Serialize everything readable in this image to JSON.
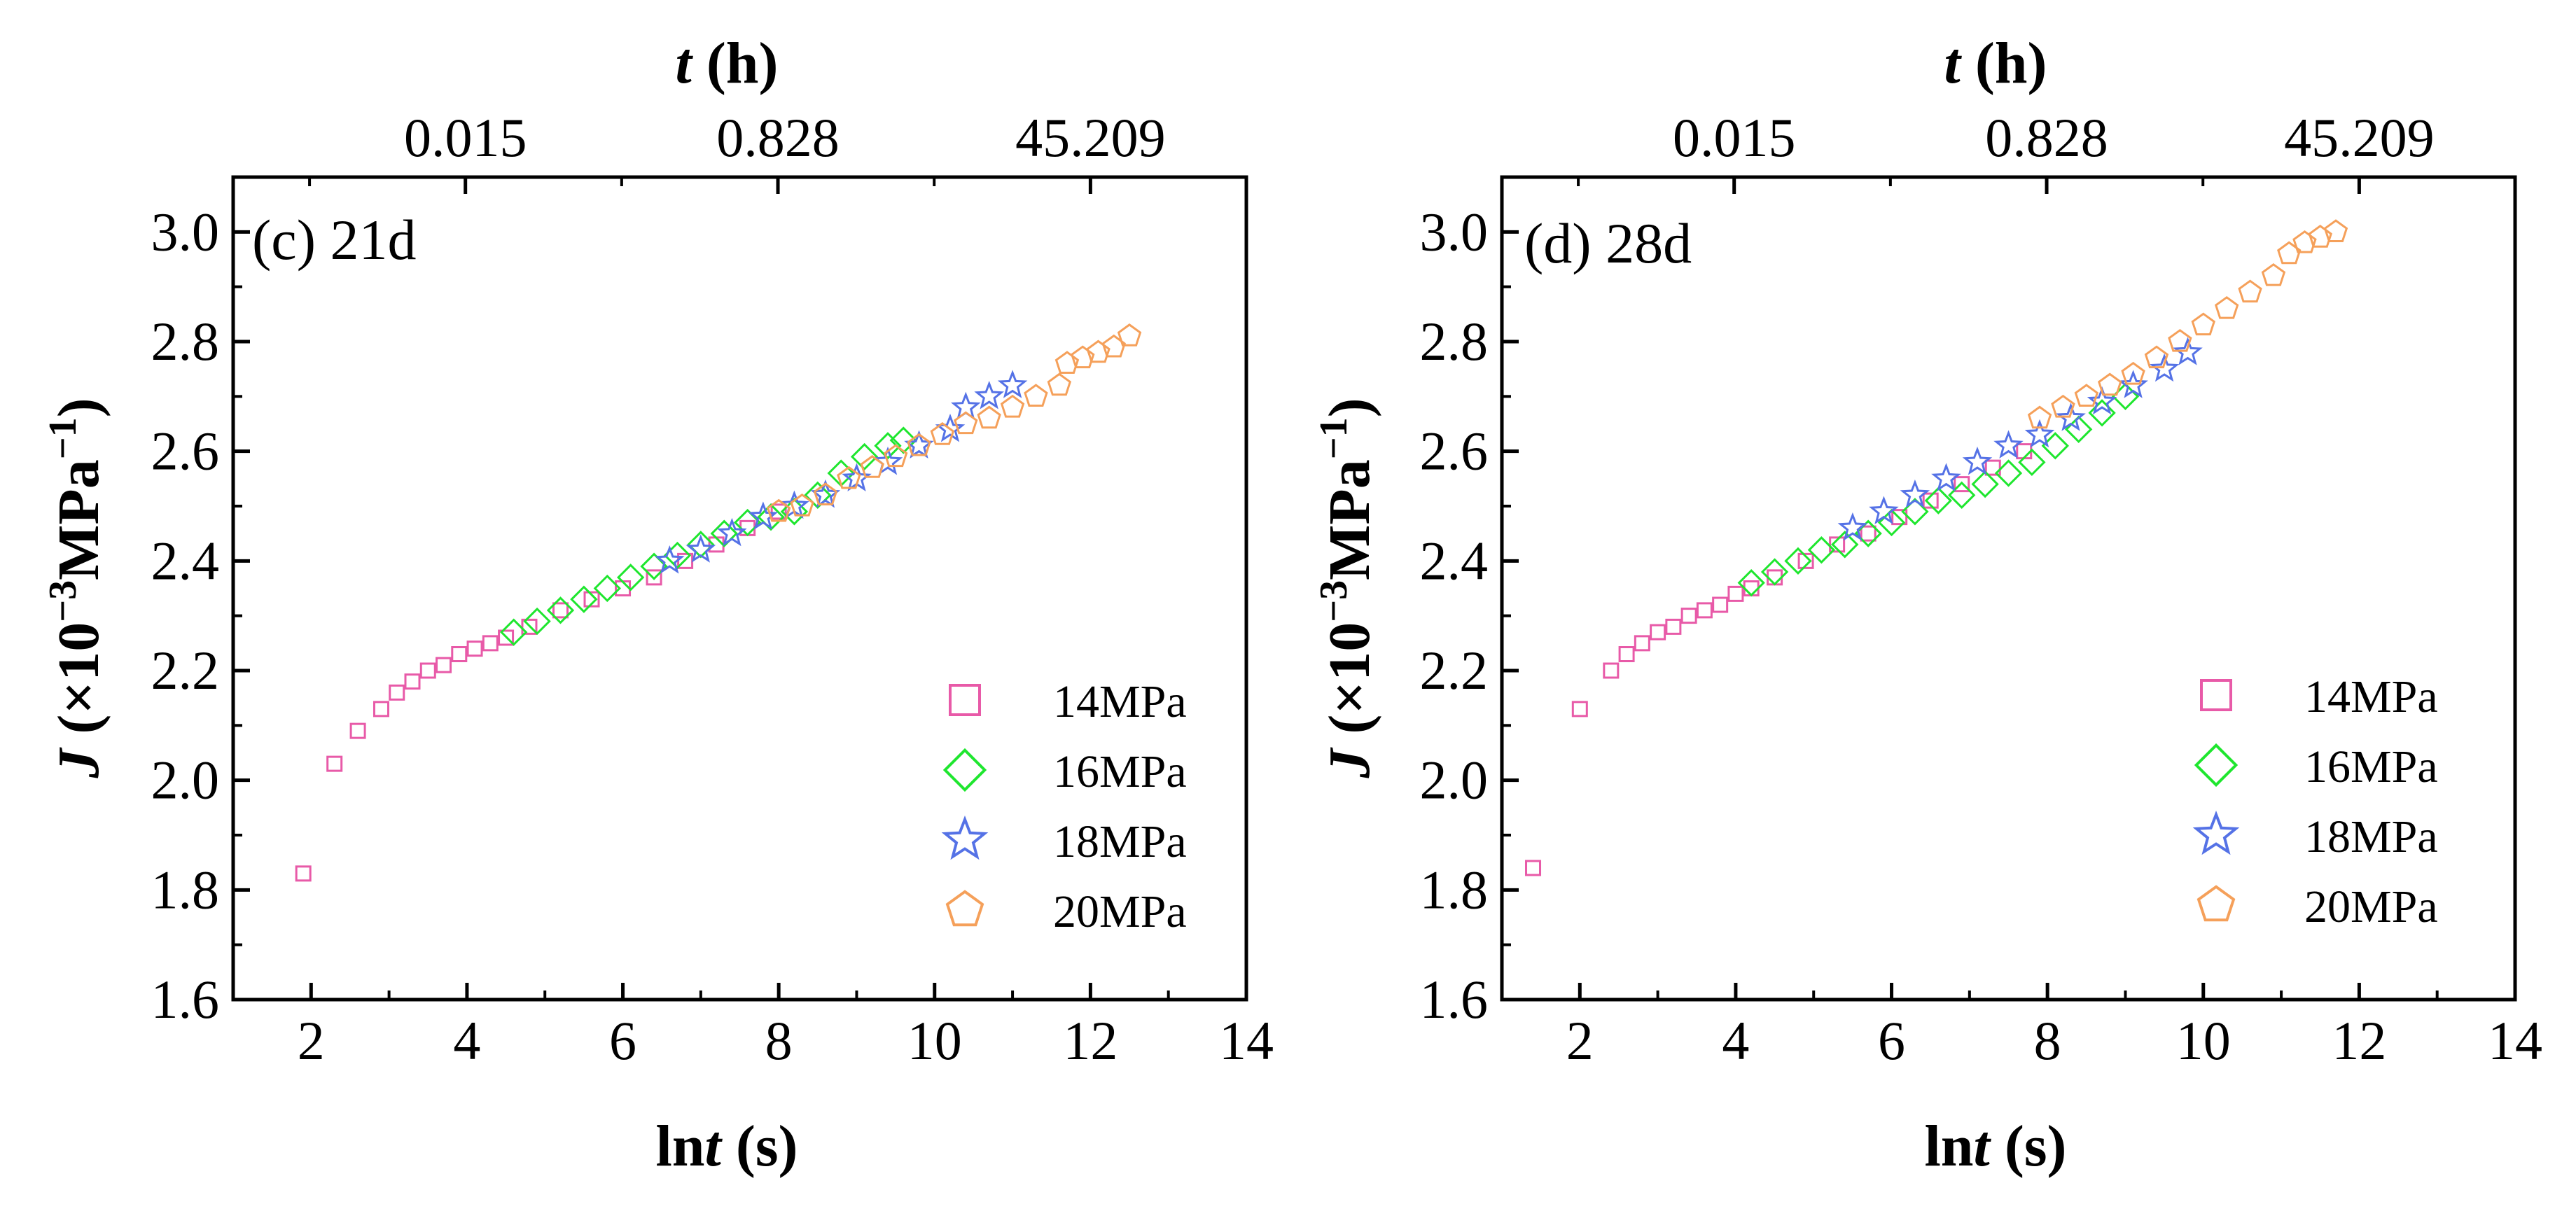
{
  "chart_data": [
    {
      "type": "scatter",
      "panel_label": "(c) 21d",
      "xlabel_prefix": "ln",
      "xlabel_var": "t",
      "xlabel_unit": " (s)",
      "top_xlabel_var": "t",
      "top_xlabel_unit": " (h)",
      "ylabel": "J (×10⁻³MPa⁻¹)",
      "ylabel_var": "J",
      "ylabel_pre": " (×10",
      "ylabel_exp1": "−3",
      "ylabel_mid": "MPa",
      "ylabel_exp2": "−1",
      "ylabel_post": ")",
      "xlim": [
        1,
        14
      ],
      "ylim": [
        1.6,
        3.1
      ],
      "xticks": [
        2,
        4,
        6,
        8,
        10,
        12,
        14
      ],
      "xtick_labels": [
        "2",
        "4",
        "6",
        "8",
        "10",
        "12",
        "14"
      ],
      "yticks": [
        1.6,
        1.8,
        2.0,
        2.2,
        2.4,
        2.6,
        2.8,
        3.0
      ],
      "ytick_labels": [
        "1.6",
        "1.8",
        "2.0",
        "2.2",
        "2.4",
        "2.6",
        "2.8",
        "3.0"
      ],
      "top_xticks_lnt": [
        3.98,
        7.99,
        12.0
      ],
      "top_xtick_labels": [
        "0.015",
        "0.828",
        "45.209"
      ],
      "legend_position": "bottom-right",
      "series": [
        {
          "name": "14MPa",
          "color": "#e85aa8",
          "marker": "square",
          "x": [
            1.9,
            2.3,
            2.6,
            2.9,
            3.1,
            3.3,
            3.5,
            3.7,
            3.9,
            4.1,
            4.3,
            4.5,
            4.8,
            5.2,
            5.6,
            6.0,
            6.4,
            6.8,
            7.2,
            7.6,
            8.0
          ],
          "y": [
            1.83,
            2.03,
            2.09,
            2.13,
            2.16,
            2.18,
            2.2,
            2.21,
            2.23,
            2.24,
            2.25,
            2.26,
            2.28,
            2.31,
            2.33,
            2.35,
            2.37,
            2.4,
            2.43,
            2.46,
            2.49
          ]
        },
        {
          "name": "16MPa",
          "color": "#1ee62e",
          "marker": "diamond",
          "x": [
            4.6,
            4.9,
            5.2,
            5.5,
            5.8,
            6.1,
            6.4,
            6.7,
            7.0,
            7.3,
            7.6,
            7.9,
            8.2,
            8.5,
            8.8,
            9.1,
            9.4,
            9.6
          ],
          "y": [
            2.27,
            2.29,
            2.31,
            2.33,
            2.35,
            2.37,
            2.39,
            2.41,
            2.43,
            2.45,
            2.47,
            2.48,
            2.49,
            2.52,
            2.56,
            2.59,
            2.61,
            2.62
          ]
        },
        {
          "name": "18MPa",
          "color": "#5572e6",
          "marker": "star",
          "x": [
            6.6,
            7.0,
            7.4,
            7.8,
            8.2,
            8.6,
            9.0,
            9.4,
            9.8,
            10.2,
            10.4,
            10.7,
            11.0
          ],
          "y": [
            2.4,
            2.42,
            2.45,
            2.48,
            2.5,
            2.52,
            2.55,
            2.58,
            2.61,
            2.64,
            2.68,
            2.7,
            2.72
          ]
        },
        {
          "name": "20MPa",
          "color": "#f5a05a",
          "marker": "pentagon",
          "x": [
            8.0,
            8.3,
            8.6,
            8.9,
            9.2,
            9.5,
            9.8,
            10.1,
            10.4,
            10.7,
            11.0,
            11.3,
            11.6,
            11.7,
            11.9,
            12.1,
            12.3,
            12.5
          ],
          "y": [
            2.49,
            2.5,
            2.52,
            2.55,
            2.57,
            2.59,
            2.61,
            2.63,
            2.65,
            2.66,
            2.68,
            2.7,
            2.72,
            2.76,
            2.77,
            2.78,
            2.79,
            2.81
          ]
        }
      ]
    },
    {
      "type": "scatter",
      "panel_label": "(d) 28d",
      "xlabel_prefix": "ln",
      "xlabel_var": "t",
      "xlabel_unit": " (s)",
      "top_xlabel_var": "t",
      "top_xlabel_unit": " (h)",
      "ylabel": "J (×10⁻³MPa⁻¹)",
      "ylabel_var": "J",
      "ylabel_pre": " (×10",
      "ylabel_exp1": "−3",
      "ylabel_mid": "MPa",
      "ylabel_exp2": "−1",
      "ylabel_post": ")",
      "xlim": [
        1,
        14
      ],
      "ylim": [
        1.6,
        3.1
      ],
      "xticks": [
        2,
        4,
        6,
        8,
        10,
        12,
        14
      ],
      "xtick_labels": [
        "2",
        "4",
        "6",
        "8",
        "10",
        "12",
        "14"
      ],
      "yticks": [
        1.6,
        1.8,
        2.0,
        2.2,
        2.4,
        2.6,
        2.8,
        3.0
      ],
      "ytick_labels": [
        "1.6",
        "1.8",
        "2.0",
        "2.2",
        "2.4",
        "2.6",
        "2.8",
        "3.0"
      ],
      "top_xticks_lnt": [
        3.98,
        7.99,
        12.0
      ],
      "top_xtick_labels": [
        "0.015",
        "0.828",
        "45.209"
      ],
      "legend_position": "bottom-right",
      "series": [
        {
          "name": "14MPa",
          "color": "#e85aa8",
          "marker": "square",
          "x": [
            1.4,
            2.0,
            2.4,
            2.6,
            2.8,
            3.0,
            3.2,
            3.4,
            3.6,
            3.8,
            4.0,
            4.2,
            4.5,
            4.9,
            5.3,
            5.7,
            6.1,
            6.5,
            6.9,
            7.3,
            7.7
          ],
          "y": [
            1.84,
            2.13,
            2.2,
            2.23,
            2.25,
            2.27,
            2.28,
            2.3,
            2.31,
            2.32,
            2.34,
            2.35,
            2.37,
            2.4,
            2.43,
            2.45,
            2.48,
            2.51,
            2.54,
            2.57,
            2.6
          ]
        },
        {
          "name": "16MPa",
          "color": "#1ee62e",
          "marker": "diamond",
          "x": [
            4.2,
            4.5,
            4.8,
            5.1,
            5.4,
            5.7,
            6.0,
            6.3,
            6.6,
            6.9,
            7.2,
            7.5,
            7.8,
            8.1,
            8.4,
            8.7,
            9.0
          ],
          "y": [
            2.36,
            2.38,
            2.4,
            2.42,
            2.43,
            2.45,
            2.47,
            2.49,
            2.51,
            2.52,
            2.54,
            2.56,
            2.58,
            2.61,
            2.64,
            2.67,
            2.7
          ]
        },
        {
          "name": "18MPa",
          "color": "#5572e6",
          "marker": "star",
          "x": [
            5.5,
            5.9,
            6.3,
            6.7,
            7.1,
            7.5,
            7.9,
            8.3,
            8.7,
            9.1,
            9.5,
            9.8
          ],
          "y": [
            2.46,
            2.49,
            2.52,
            2.55,
            2.58,
            2.61,
            2.63,
            2.66,
            2.69,
            2.72,
            2.75,
            2.78
          ]
        },
        {
          "name": "20MPa",
          "color": "#f5a05a",
          "marker": "pentagon",
          "x": [
            7.9,
            8.2,
            8.5,
            8.8,
            9.1,
            9.4,
            9.7,
            10.0,
            10.3,
            10.6,
            10.9,
            11.1,
            11.3,
            11.5,
            11.7
          ],
          "y": [
            2.66,
            2.68,
            2.7,
            2.72,
            2.74,
            2.77,
            2.8,
            2.83,
            2.86,
            2.89,
            2.92,
            2.96,
            2.98,
            2.99,
            3.0
          ]
        }
      ]
    }
  ]
}
